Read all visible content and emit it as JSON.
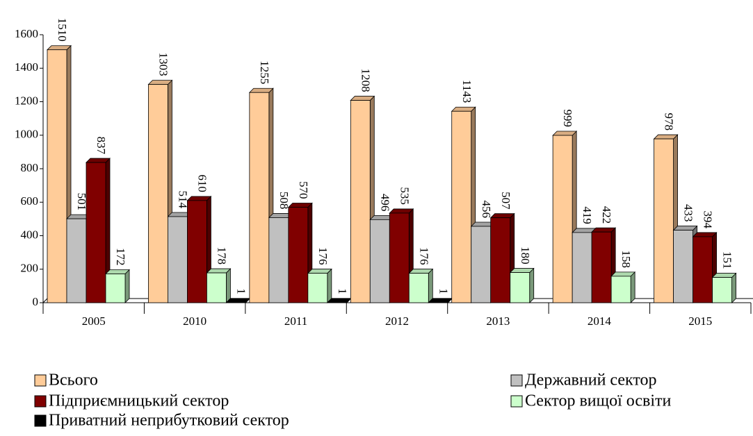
{
  "chart_data": {
    "type": "bar3d",
    "categories": [
      "2005",
      "2010",
      "2011",
      "2012",
      "2013",
      "2014",
      "2015"
    ],
    "series": [
      {
        "name": "Всього",
        "color": "#ffcc99",
        "values": [
          1510,
          1303,
          1255,
          1208,
          1143,
          999,
          978
        ]
      },
      {
        "name": "Державний сектор",
        "color": "#c0c0c0",
        "values": [
          501,
          514,
          508,
          496,
          456,
          419,
          433
        ]
      },
      {
        "name": "Підприємницький сектор",
        "color": "#800000",
        "values": [
          837,
          610,
          570,
          535,
          507,
          422,
          394
        ]
      },
      {
        "name": "Сектор вищої освіти",
        "color": "#ccffcc",
        "values": [
          172,
          178,
          176,
          176,
          180,
          158,
          151
        ]
      },
      {
        "name": "Приватний неприбутковий сектор",
        "color": "#000000",
        "values": [
          null,
          1,
          1,
          1,
          null,
          null,
          null
        ]
      }
    ],
    "ylim": [
      0,
      1600
    ],
    "yticks": [
      0,
      200,
      400,
      600,
      800,
      1000,
      1200,
      1400,
      1600
    ],
    "legend": "bottom"
  }
}
